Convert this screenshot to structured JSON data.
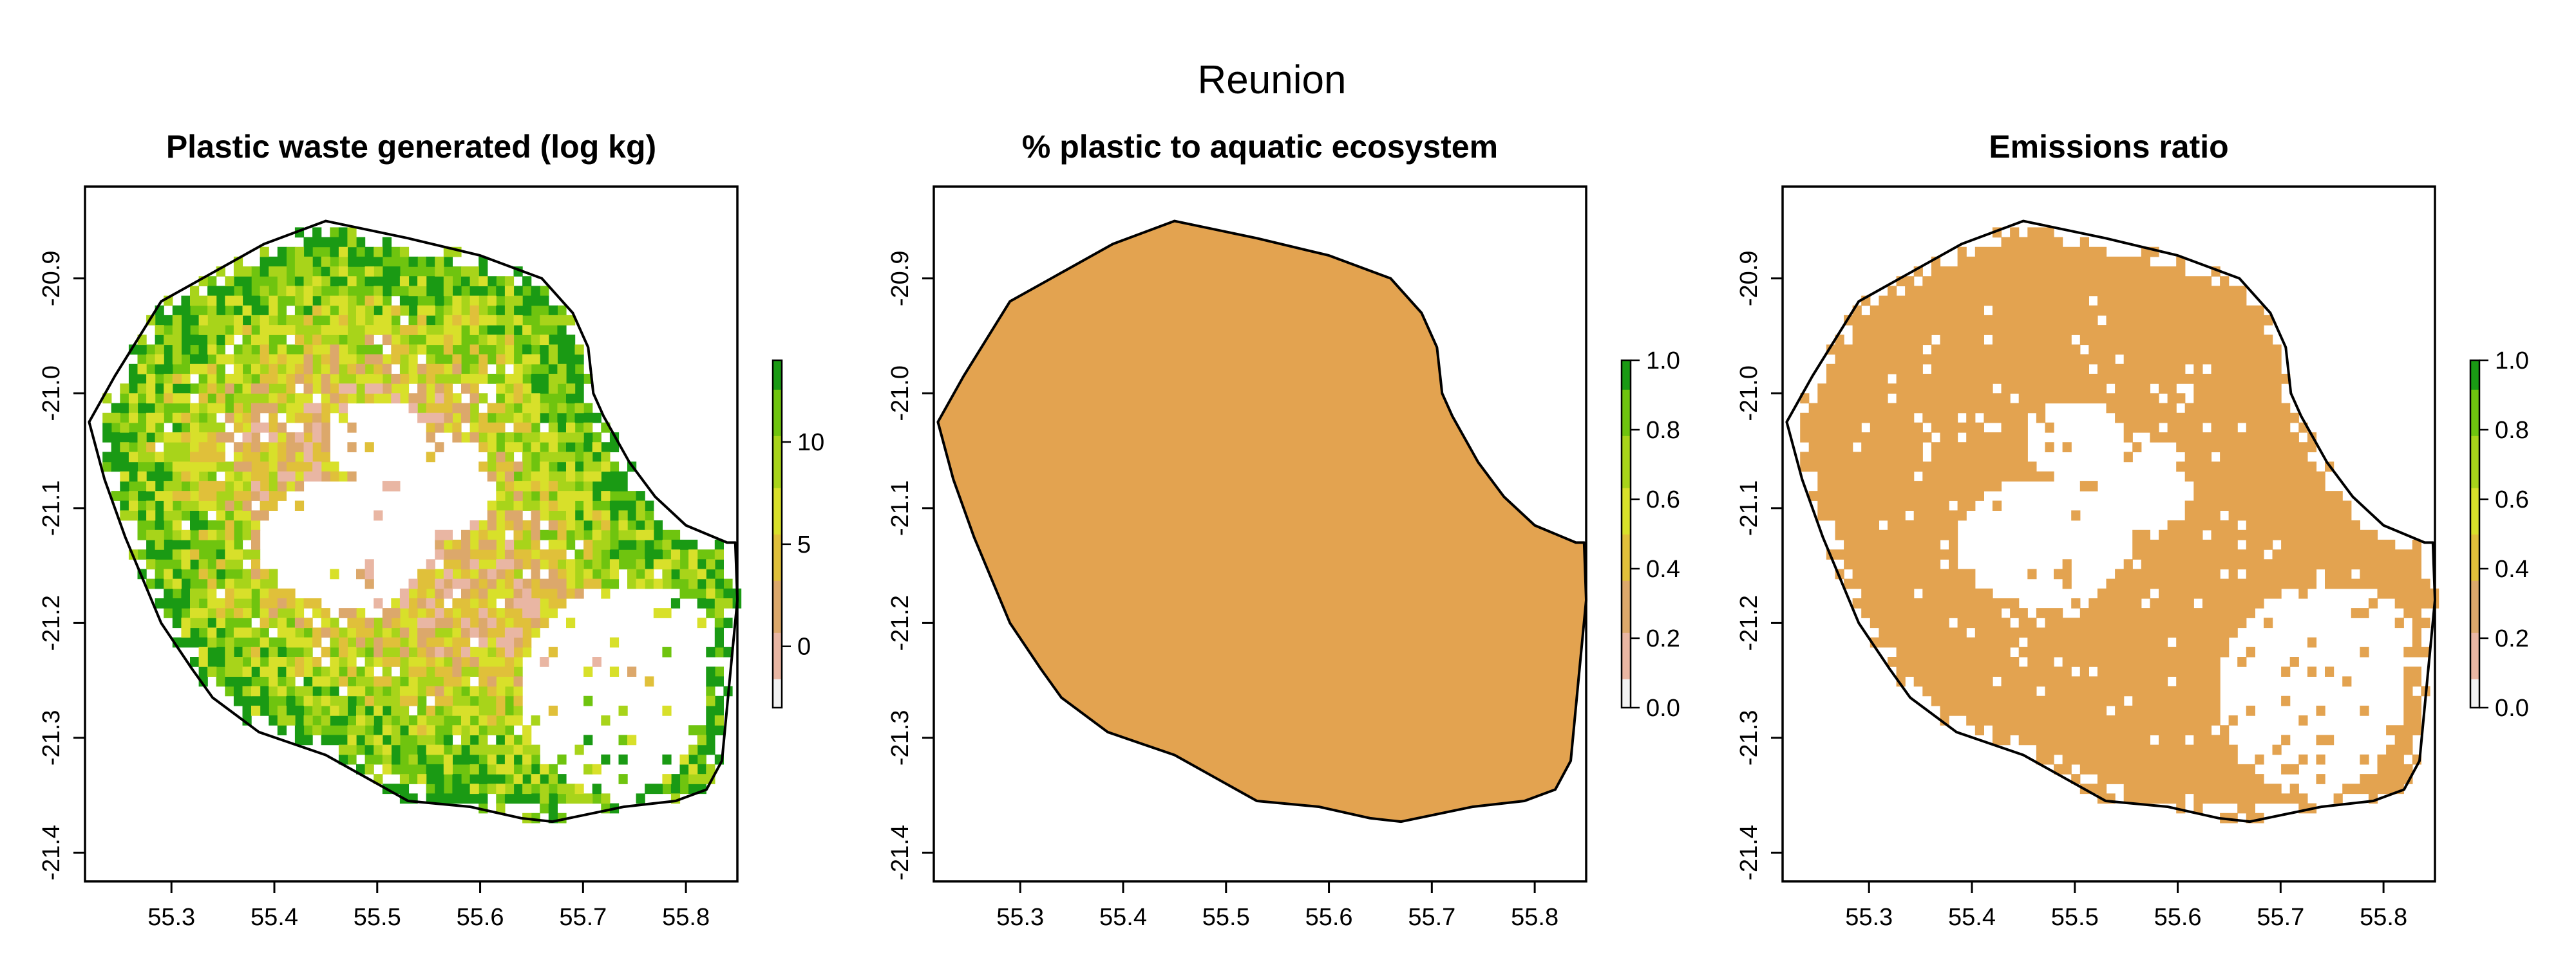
{
  "figure": {
    "title": "Reunion"
  },
  "colors": {
    "ramp": [
      "#f2f2f2",
      "#e9b6a3",
      "#dca86b",
      "#e0c03a",
      "#d8e02a",
      "#a8d41a",
      "#6fc40f",
      "#1a9a14"
    ],
    "uniform_fill": "#e3a350",
    "outline": "#000000"
  },
  "outline_lonlat": [
    [
      55.22,
      -21.025
    ],
    [
      55.245,
      -20.985
    ],
    [
      55.29,
      -20.92
    ],
    [
      55.33,
      -20.9
    ],
    [
      55.39,
      -20.87
    ],
    [
      55.45,
      -20.85
    ],
    [
      55.53,
      -20.865
    ],
    [
      55.6,
      -20.88
    ],
    [
      55.645,
      -20.895
    ],
    [
      55.66,
      -20.9
    ],
    [
      55.69,
      -20.93
    ],
    [
      55.705,
      -20.96
    ],
    [
      55.71,
      -21.0
    ],
    [
      55.72,
      -21.02
    ],
    [
      55.745,
      -21.06
    ],
    [
      55.77,
      -21.09
    ],
    [
      55.8,
      -21.115
    ],
    [
      55.84,
      -21.13
    ],
    [
      55.848,
      -21.13
    ],
    [
      55.85,
      -21.18
    ],
    [
      55.843,
      -21.245
    ],
    [
      55.835,
      -21.32
    ],
    [
      55.82,
      -21.345
    ],
    [
      55.79,
      -21.355
    ],
    [
      55.74,
      -21.36
    ],
    [
      55.67,
      -21.373
    ],
    [
      55.64,
      -21.37
    ],
    [
      55.59,
      -21.36
    ],
    [
      55.53,
      -21.355
    ],
    [
      55.45,
      -21.315
    ],
    [
      55.385,
      -21.295
    ],
    [
      55.34,
      -21.265
    ],
    [
      55.32,
      -21.24
    ],
    [
      55.29,
      -21.2
    ],
    [
      55.255,
      -21.125
    ],
    [
      55.235,
      -21.075
    ]
  ],
  "chart_data": [
    {
      "type": "raster-map",
      "title": "Plastic waste generated (log kg)",
      "region": "Reunion",
      "xticks": [
        55.3,
        55.4,
        55.5,
        55.6,
        55.7,
        55.8
      ],
      "yticks": [
        -20.9,
        -21.0,
        -21.1,
        -21.2,
        -21.3,
        -21.4
      ],
      "xlim": [
        55.216,
        55.85
      ],
      "ylim": [
        -21.425,
        -20.82
      ],
      "legend": {
        "position": "right",
        "ticks": [
          0,
          5,
          10
        ],
        "range": [
          -3,
          14
        ]
      },
      "values": "log kg per grid cell; high (≈10–14, green) along coast and western slopes, low (≈0–5, pink/yellow) in the interior ring; no data (white) in the central cirques and south-east volcano area"
    },
    {
      "type": "raster-map",
      "title": "% plastic to aquatic ecosystem",
      "region": "Reunion",
      "xticks": [
        55.3,
        55.4,
        55.5,
        55.6,
        55.7,
        55.8
      ],
      "yticks": [
        -20.9,
        -21.0,
        -21.1,
        -21.2,
        -21.3,
        -21.4
      ],
      "xlim": [
        55.216,
        55.85
      ],
      "ylim": [
        -21.425,
        -20.82
      ],
      "legend": {
        "position": "right",
        "ticks": [
          0.0,
          0.2,
          0.4,
          0.6,
          0.8,
          1.0
        ],
        "range": [
          0,
          1
        ]
      },
      "values": "uniform value ≈0.3 over the whole island"
    },
    {
      "type": "raster-map",
      "title": "Emissions ratio",
      "region": "Reunion",
      "xticks": [
        55.3,
        55.4,
        55.5,
        55.6,
        55.7,
        55.8
      ],
      "yticks": [
        -20.9,
        -21.0,
        -21.1,
        -21.2,
        -21.3,
        -21.4
      ],
      "xlim": [
        55.216,
        55.85
      ],
      "ylim": [
        -21.425,
        -20.82
      ],
      "legend": {
        "position": "right",
        "ticks": [
          0.0,
          0.2,
          0.4,
          0.6,
          0.8,
          1.0
        ],
        "range": [
          0,
          1
        ]
      },
      "values": "≈0.3 wherever plastic waste is generated; no data (white) in the interior and south-east"
    }
  ],
  "labels": {
    "xtick_labels": [
      "55.3",
      "55.4",
      "55.5",
      "55.6",
      "55.7",
      "55.8"
    ],
    "ytick_labels": [
      "-20.9",
      "-21.0",
      "-21.1",
      "-21.2",
      "-21.3",
      "-21.4"
    ],
    "legend1_labels": [
      "0",
      "5",
      "10"
    ],
    "legend2_labels": [
      "0.0",
      "0.2",
      "0.4",
      "0.6",
      "0.8",
      "1.0"
    ],
    "legend3_labels": [
      "0.0",
      "0.2",
      "0.4",
      "0.6",
      "0.8",
      "1.0"
    ]
  }
}
